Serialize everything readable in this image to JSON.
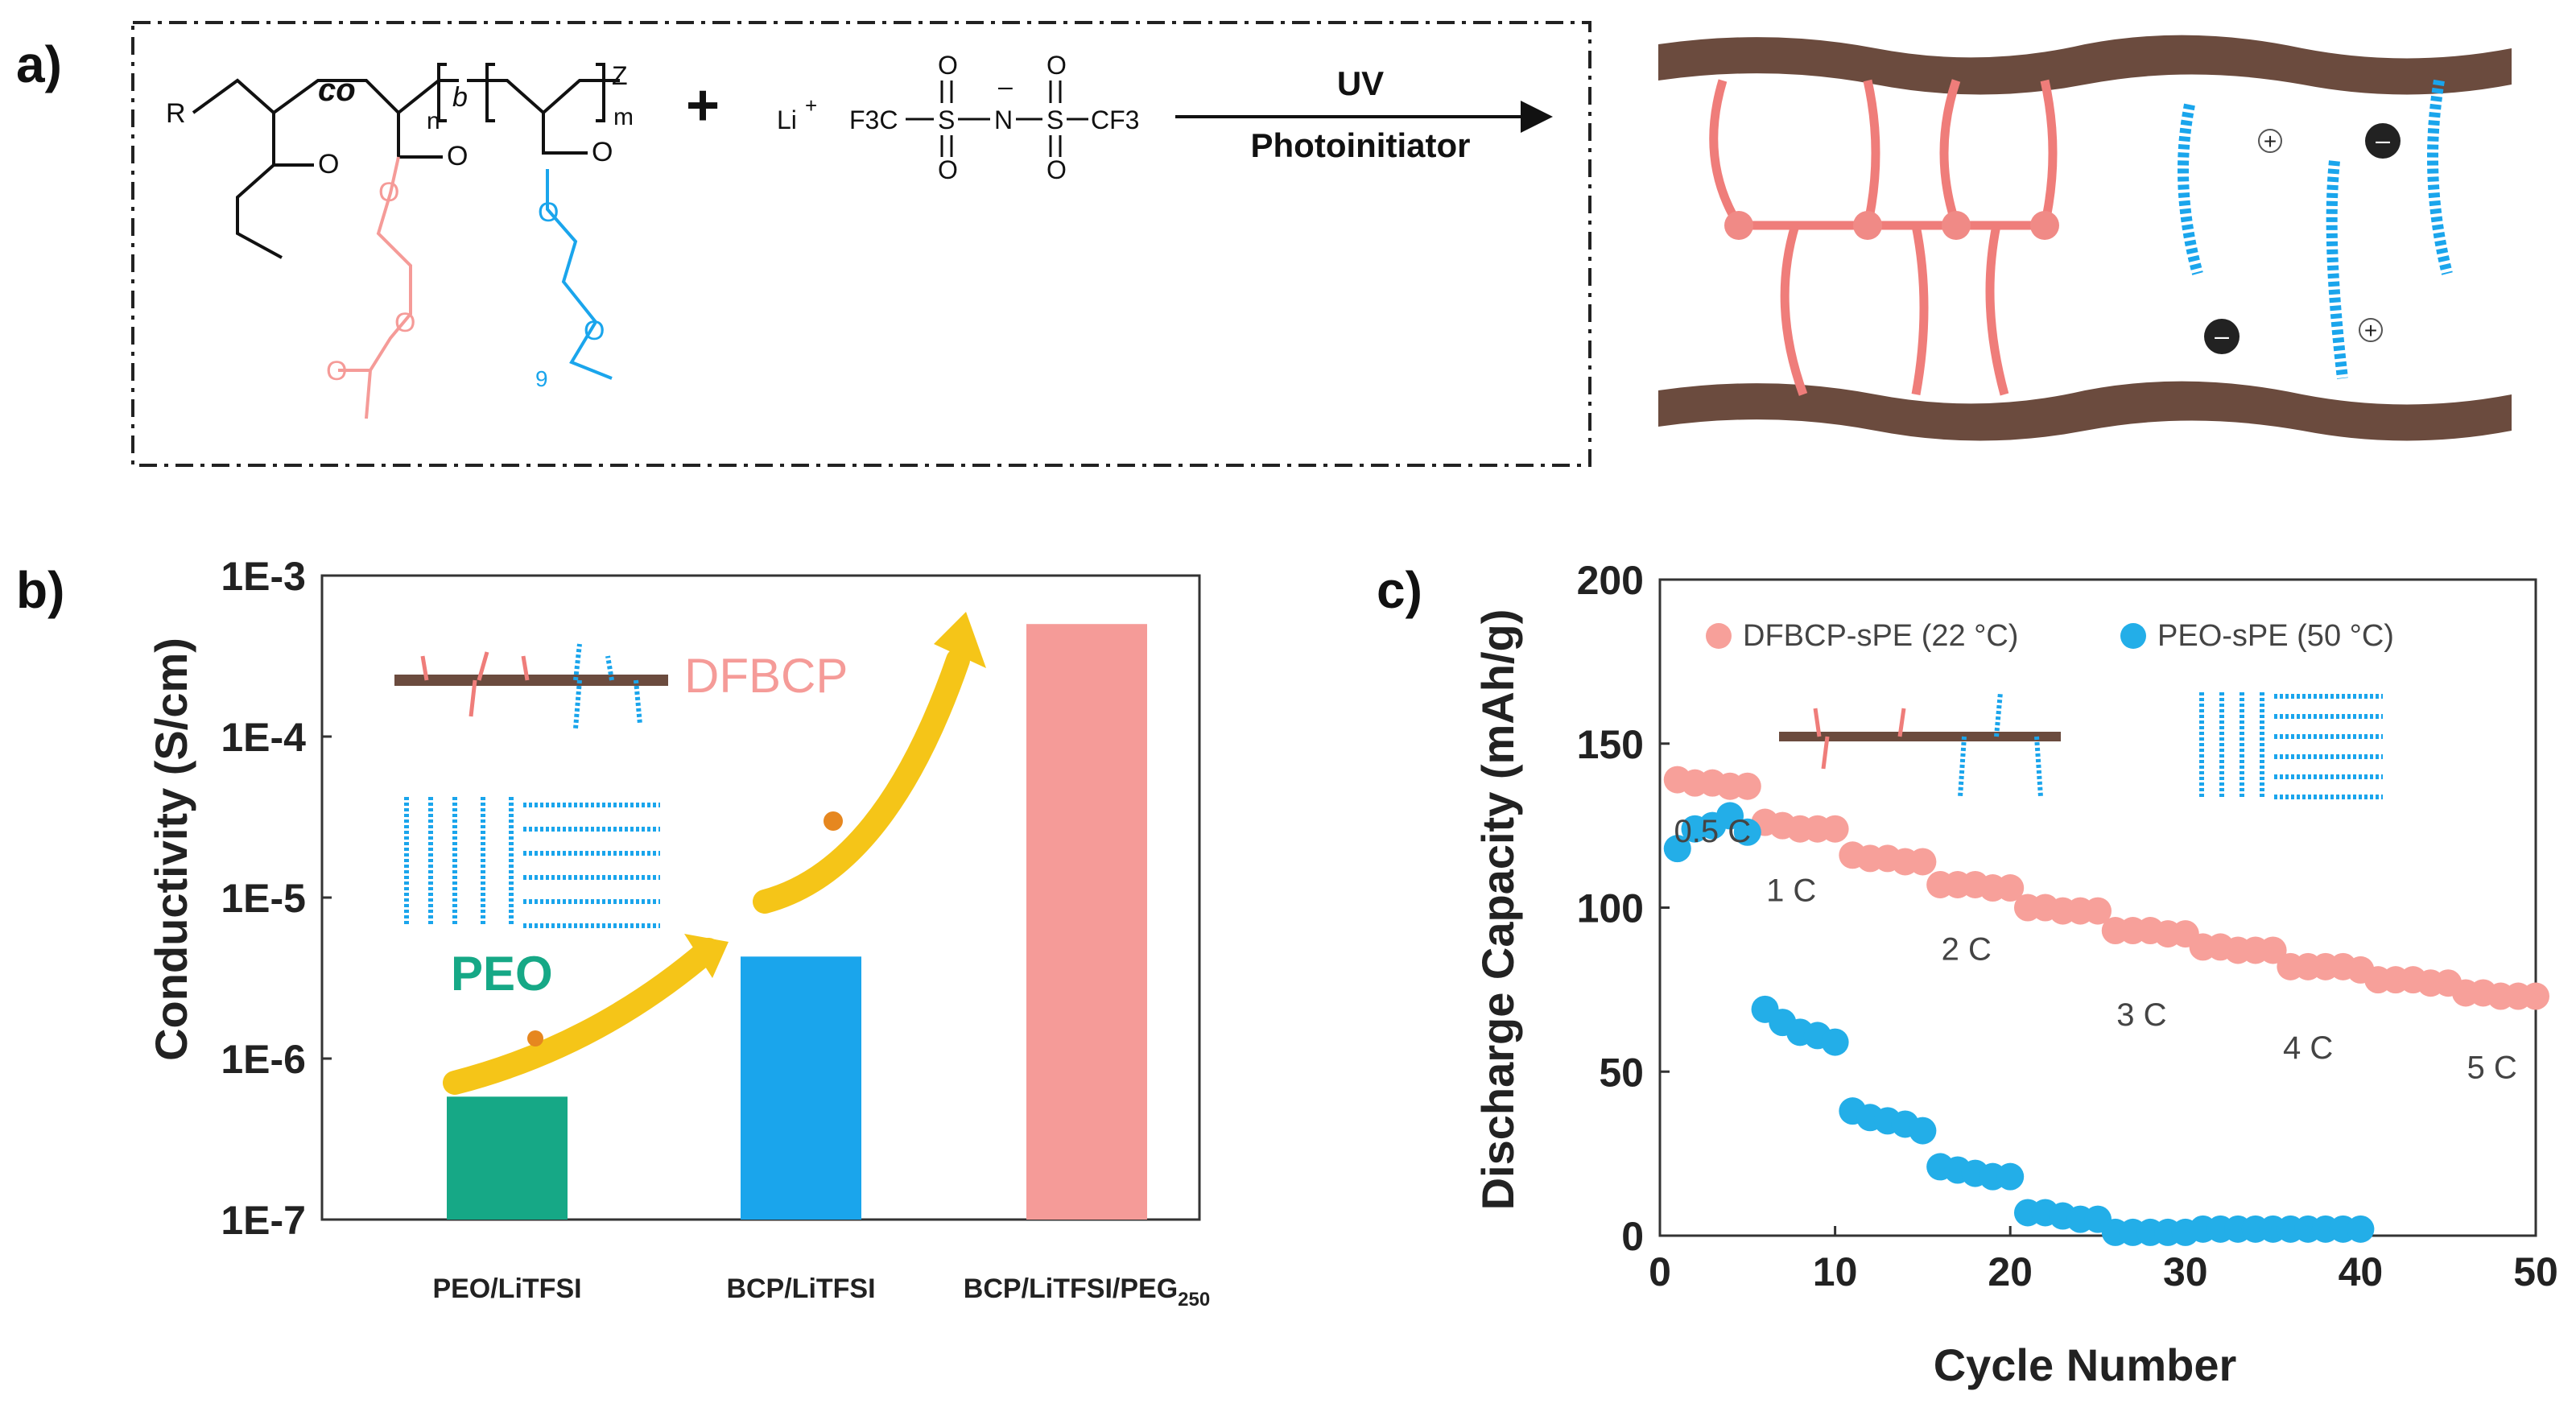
{
  "panel_labels": {
    "a": "a)",
    "b": "b)",
    "c": "c)"
  },
  "scheme": {
    "r_group": "R",
    "co_text": "co",
    "b_text": "b",
    "n_sub": "n",
    "m_sub": "m",
    "z_text": "Z",
    "nine_sub": "9",
    "o_glyph": "O",
    "plus": "+",
    "salt_li": "Li",
    "salt_plus": "+",
    "salt_f3c": "F3C",
    "salt_s": "S",
    "salt_n": "N",
    "salt_minus": "–",
    "salt_cf3": "CF3",
    "arrow_top": "UV",
    "arrow_bottom": "Photoinitiator",
    "ion_plus": "+",
    "ion_minus": "–"
  },
  "colors": {
    "green": "#16a886",
    "blue": "#1aa5ec",
    "pink": "#f59b98",
    "pink_dark": "#ef7d7a",
    "salmon_marker": "#f7a09a",
    "blue_marker": "#23aee8",
    "brown": "#6b4b3e",
    "gold": "#f5c518",
    "axis": "#333333"
  },
  "chart_data": [
    {
      "id": "b",
      "type": "bar",
      "yscale": "log",
      "ylim": [
        1e-07,
        0.001
      ],
      "yticks": [
        "1E-7",
        "1E-6",
        "1E-5",
        "1E-4",
        "1E-3"
      ],
      "ylabel": "Conductivity (S/cm)",
      "categories": [
        "PEO/LiTFSI",
        "BCP/LiTFSI",
        "BCP/LiTFSI/PEG"
      ],
      "category_subscripts": [
        "",
        "",
        "250"
      ],
      "values": [
        5.8e-07,
        4.3e-06,
        0.0005
      ],
      "bar_color_keys": [
        "green",
        "blue",
        "pink"
      ],
      "annotations": {
        "dfbcp": "DFBCP",
        "peo": "PEO"
      }
    },
    {
      "id": "c",
      "type": "scatter",
      "xlabel": "Cycle Number",
      "ylabel": "Discharge Capacity (mAh/g)",
      "xlim": [
        0,
        50
      ],
      "ylim": [
        0,
        200
      ],
      "xticks": [
        "0",
        "10",
        "20",
        "30",
        "40",
        "50"
      ],
      "yticks": [
        "0",
        "50",
        "100",
        "150",
        "200"
      ],
      "series": [
        {
          "name": "DFBCP-sPE (22 °C)",
          "color_key": "salmon_marker",
          "x": [
            1,
            2,
            3,
            4,
            5,
            6,
            7,
            8,
            9,
            10,
            11,
            12,
            13,
            14,
            15,
            16,
            17,
            18,
            19,
            20,
            21,
            22,
            23,
            24,
            25,
            26,
            27,
            28,
            29,
            30,
            31,
            32,
            33,
            34,
            35,
            36,
            37,
            38,
            39,
            40,
            41,
            42,
            43,
            44,
            45,
            46,
            47,
            48,
            49,
            50
          ],
          "y": [
            139,
            138,
            138,
            137,
            137,
            126,
            125,
            124,
            124,
            124,
            116,
            115,
            115,
            114,
            114,
            107,
            107,
            107,
            106,
            106,
            100,
            100,
            99,
            99,
            99,
            93,
            93,
            93,
            92,
            92,
            88,
            88,
            87,
            87,
            87,
            82,
            82,
            82,
            82,
            81,
            78,
            78,
            78,
            77,
            77,
            74,
            74,
            73,
            73,
            73
          ]
        },
        {
          "name": "PEO-sPE (50 °C)",
          "color_key": "blue_marker",
          "x": [
            1,
            2,
            3,
            4,
            5,
            6,
            7,
            8,
            9,
            10,
            11,
            12,
            13,
            14,
            15,
            16,
            17,
            18,
            19,
            20,
            21,
            22,
            23,
            24,
            25,
            26,
            27,
            28,
            29,
            30,
            31,
            32,
            33,
            34,
            35,
            36,
            37,
            38,
            39,
            40
          ],
          "y": [
            118,
            124,
            125,
            128,
            123,
            69,
            65,
            62,
            61,
            59,
            38,
            36,
            35,
            34,
            32,
            21,
            20,
            19,
            18,
            18,
            7,
            7,
            6,
            5,
            5,
            1,
            1,
            1,
            1,
            1,
            2,
            2,
            2,
            2,
            2,
            2,
            2,
            2,
            2,
            2
          ]
        }
      ],
      "rate_labels": [
        "0.5 C",
        "1 C",
        "2 C",
        "3 C",
        "4 C",
        "5 C"
      ]
    }
  ]
}
